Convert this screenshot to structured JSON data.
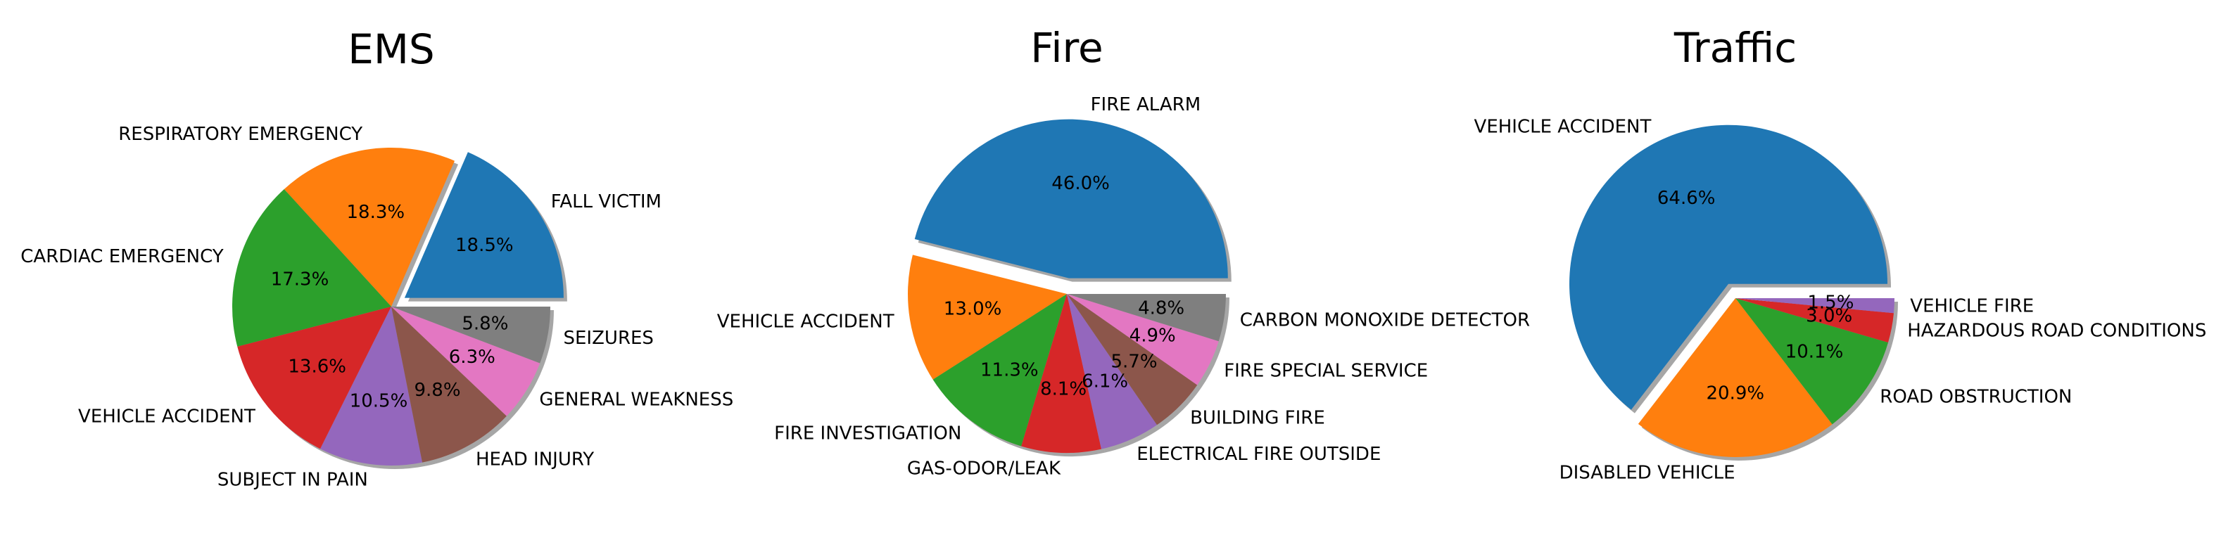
{
  "chart_data": [
    {
      "type": "pie",
      "title": "EMS",
      "categories": [
        "FALL VICTIM",
        "RESPIRATORY EMERGENCY",
        "CARDIAC EMERGENCY",
        "VEHICLE ACCIDENT",
        "SUBJECT IN PAIN",
        "HEAD INJURY",
        "GENERAL WEAKNESS",
        "SEIZURES"
      ],
      "values": [
        18.5,
        18.3,
        17.3,
        13.6,
        10.5,
        9.8,
        6.3,
        5.8
      ],
      "value_labels": [
        "18.5%",
        "18.3%",
        "17.3%",
        "13.6%",
        "10.5%",
        "9.8%",
        "6.3%",
        "5.8%"
      ],
      "exploded": [
        true,
        false,
        false,
        false,
        false,
        false,
        false,
        false
      ],
      "shadow": true,
      "start_angle_deg": 0,
      "direction": "counterclockwise"
    },
    {
      "type": "pie",
      "title": "Fire",
      "categories": [
        "FIRE ALARM",
        "VEHICLE ACCIDENT",
        "FIRE INVESTIGATION",
        "GAS-ODOR/LEAK",
        "ELECTRICAL FIRE OUTSIDE",
        "BUILDING FIRE",
        "FIRE SPECIAL SERVICE",
        "CARBON MONOXIDE DETECTOR"
      ],
      "values": [
        46.0,
        13.0,
        11.3,
        8.1,
        6.1,
        5.7,
        4.9,
        4.8
      ],
      "value_labels": [
        "46.0%",
        "13.0%",
        "11.3%",
        "8.1%",
        "6.1%",
        "5.7%",
        "4.9%",
        "4.8%"
      ],
      "exploded": [
        true,
        false,
        false,
        false,
        false,
        false,
        false,
        false
      ],
      "shadow": true,
      "start_angle_deg": 0,
      "direction": "counterclockwise"
    },
    {
      "type": "pie",
      "title": "Traffic",
      "categories": [
        "VEHICLE ACCIDENT",
        "DISABLED VEHICLE",
        "ROAD OBSTRUCTION",
        "HAZARDOUS ROAD CONDITIONS",
        "VEHICLE FIRE"
      ],
      "values": [
        64.6,
        20.9,
        10.1,
        3.0,
        1.5
      ],
      "value_labels": [
        "64.6%",
        "20.9%",
        "10.1%",
        "3.0%",
        "1.5%"
      ],
      "exploded": [
        true,
        false,
        false,
        false,
        false
      ],
      "shadow": true,
      "start_angle_deg": 0,
      "direction": "counterclockwise"
    }
  ],
  "colors": [
    "#1f77b4",
    "#ff7f0e",
    "#2ca02c",
    "#d62728",
    "#9467bd",
    "#8c564b",
    "#e377c2",
    "#7f7f7f"
  ]
}
